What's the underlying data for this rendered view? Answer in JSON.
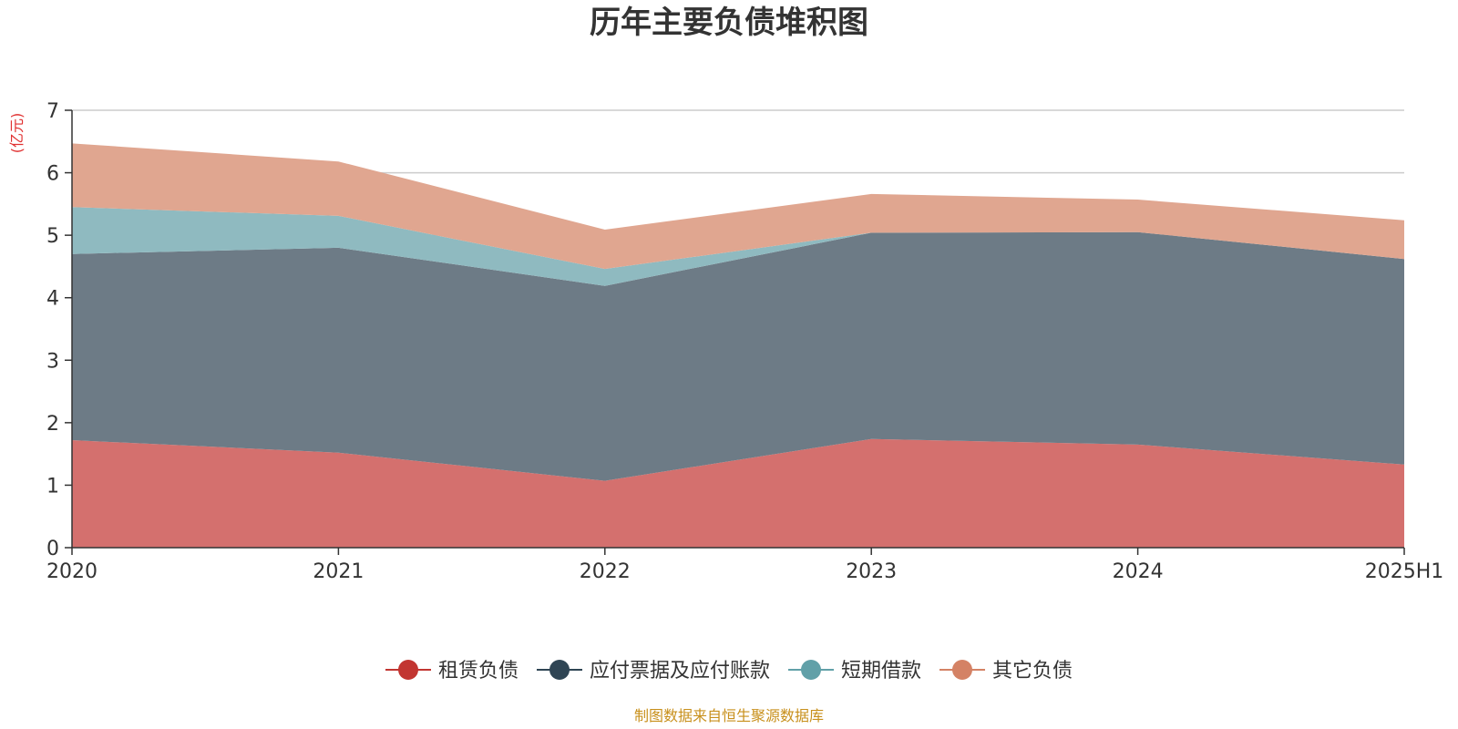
{
  "chart_data": {
    "type": "area",
    "stacked": true,
    "title": "历年主要负债堆积图",
    "ylabel": "(亿元)",
    "xlabel": "",
    "categories": [
      "2020",
      "2021",
      "2022",
      "2023",
      "2024",
      "2025H1"
    ],
    "ylim": [
      0,
      7
    ],
    "yticks": [
      0,
      1,
      2,
      3,
      4,
      5,
      6,
      7
    ],
    "grid": true,
    "legend_position": "bottom",
    "series": [
      {
        "name": "租赁负债",
        "values": [
          1.72,
          1.52,
          1.07,
          1.74,
          1.65,
          1.33
        ],
        "color": "#c23531",
        "fill_color": "#d4706e"
      },
      {
        "name": "应付票据及应付账款",
        "values": [
          2.98,
          3.28,
          3.12,
          3.3,
          3.4,
          3.29
        ],
        "color": "#2f4554",
        "fill_color": "#6d7b86"
      },
      {
        "name": "短期借款",
        "values": [
          0.75,
          0.51,
          0.27,
          0.0,
          0.0,
          0.0
        ],
        "color": "#61a0a8",
        "fill_color": "#8fbac0"
      },
      {
        "name": "其它负债",
        "values": [
          1.02,
          0.87,
          0.63,
          0.62,
          0.52,
          0.62
        ],
        "color": "#d48265",
        "fill_color": "#e0a690"
      }
    ],
    "source": "制图数据来自恒生聚源数据库"
  },
  "colors": {
    "title": "#333333",
    "unit": "#e03030",
    "source": "#c8901c",
    "grid": "#cccccc",
    "axis": "#333333"
  }
}
